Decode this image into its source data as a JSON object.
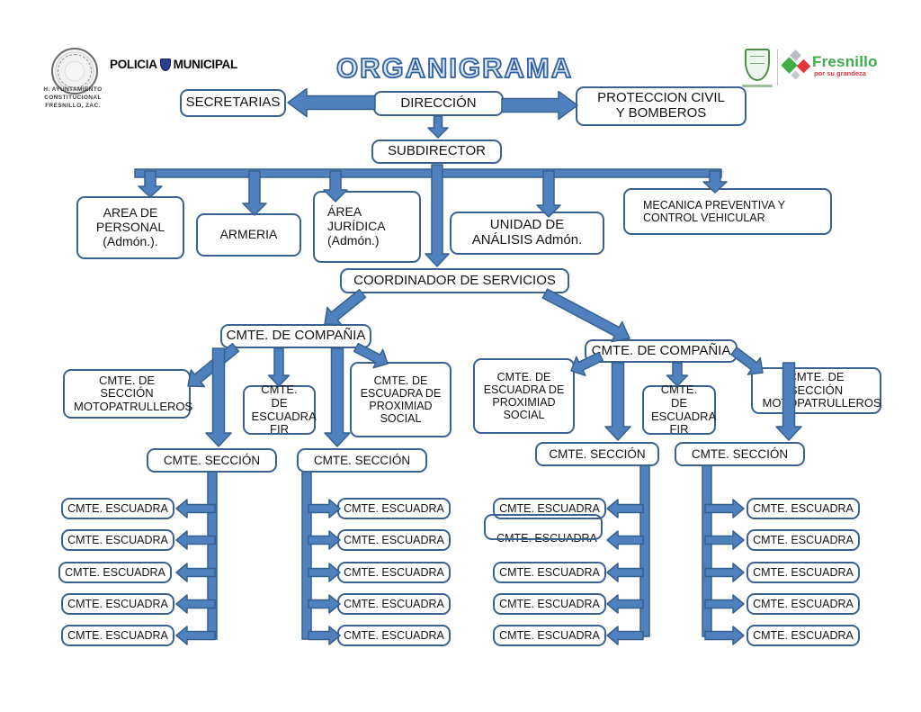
{
  "header": {
    "title": "ORGANIGRAMA",
    "seal_caption": "H. AYUNTAMIENTO CONSTITUCIONAL FRESNILLO, ZAC.",
    "police_label_1": "POLICIA",
    "police_label_2": "MUNICIPAL",
    "city_brand": {
      "name": "Fresnillo",
      "tagline": "por su grandeza"
    }
  },
  "colors": {
    "arrow_fill": "#4e81bd",
    "arrow_border": "#36618e",
    "box_border": "#3b6191",
    "title_outline": "#2e5fa3",
    "brand_green": "#3fae49",
    "brand_red": "#e2373f"
  },
  "org": {
    "secretarias": "SECRETARIAS",
    "direccion": "DIRECCIÓN",
    "proteccion_civil": "PROTECCION CIVIL Y BOMBEROS",
    "subdirector": "SUBDIRECTOR",
    "area_personal": "AREA DE PERSONAL (Admón.).",
    "armeria": "ARMERIA",
    "area_juridica": "ÁREA JURÍDICA (Admón.)",
    "unidad_analisis": "UNIDAD DE ANÁLISIS Admón.",
    "mecanica": "MECANICA PREVENTIVA Y CONTROL VEHICULAR",
    "coordinador": "COORDINADOR DE SERVICIOS",
    "compania_left": "CMTE. DE COMPAÑIA",
    "compania_right": "CMTE. DE COMPAÑIA",
    "seccion_moto_left": "CMTE. DE SECCIÓN MOTOPATRULLEROS",
    "escuadra_fir_left": "CMTE. DE ESCUADRA FIR",
    "escuadra_prox_left": "CMTE. DE ESCUADRA DE PROXIMIAD SOCIAL",
    "escuadra_prox_right": "CMTE. DE ESCUADRA DE PROXIMIAD SOCIAL",
    "escuadra_fir_right": "CMTE. DE ESCUADRA FIR",
    "seccion_moto_right": "CMTE. DE SECCIÓN MOTOPATRULLEROS",
    "secciones": [
      "CMTE. SECCIÓN",
      "CMTE. SECCIÓN",
      "CMTE. SECCIÓN",
      "CMTE. SECCIÓN"
    ],
    "escuadras": [
      [
        "CMTE. ESCUADRA",
        "CMTE. ESCUADRA",
        "CMTE. ESCUADRA",
        "CMTE. ESCUADRA",
        "CMTE. ESCUADRA"
      ],
      [
        "CMTE. ESCUADRA",
        "CMTE. ESCUADRA",
        "CMTE. ESCUADRA",
        "CMTE. ESCUADRA",
        "CMTE. ESCUADRA"
      ],
      [
        "CMTE. ESCUADRA",
        "CMTE. ESCUADRA",
        "CMTE. ESCUADRA",
        "CMTE. ESCUADRA",
        "CMTE. ESCUADRA"
      ],
      [
        "CMTE. ESCUADRA",
        "CMTE. ESCUADRA",
        "CMTE. ESCUADRA",
        "CMTE. ESCUADRA",
        "CMTE. ESCUADRA"
      ]
    ]
  }
}
